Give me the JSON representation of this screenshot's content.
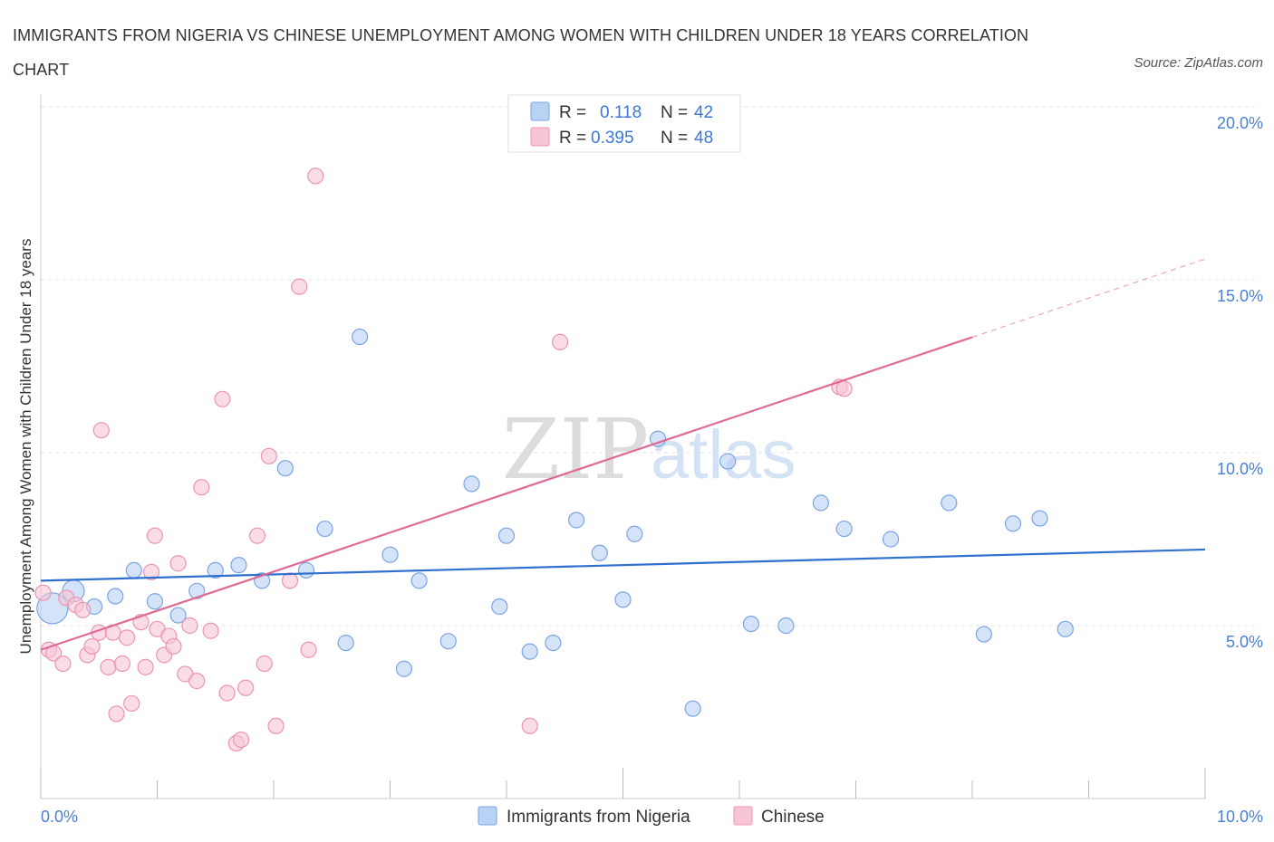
{
  "title": "IMMIGRANTS FROM NIGERIA VS CHINESE UNEMPLOYMENT AMONG WOMEN WITH CHILDREN UNDER 18 YEARS CORRELATION CHART",
  "source": "Source: ZipAtlas.com",
  "watermark": {
    "zip": "ZIP",
    "atlas": "atlas"
  },
  "colors": {
    "nigeria_fill": "#b9d1f3",
    "nigeria_stroke": "#7aa5e3",
    "nigeria_line": "#2f6fcf",
    "chinese_fill": "#f7c5d5",
    "chinese_stroke": "#ec94b2",
    "chinese_line": "#e06a94",
    "grid": "#e3e3e3",
    "axis_text": "#4a7fd1"
  },
  "legend": {
    "rows": [
      {
        "r_label": "R =",
        "r_value": "0.118",
        "n_label": "N =",
        "n_value": "42"
      },
      {
        "r_label": "R =",
        "r_value": "0.395",
        "n_label": "N =",
        "n_value": "48"
      }
    ]
  },
  "chart_data": {
    "type": "scatter",
    "xlabel": "",
    "ylabel": "Unemployment Among Women with Children Under 18 years",
    "xlim": [
      0,
      10
    ],
    "ylim": [
      0,
      20
    ],
    "x_tick_labels": [
      "0.0%",
      "10.0%"
    ],
    "y_ticks": [
      5,
      10,
      15,
      20
    ],
    "y_tick_labels": [
      "5.0%",
      "10.0%",
      "15.0%",
      "20.0%"
    ],
    "grid": true,
    "legend_position": "top-center",
    "series": [
      {
        "name": "Immigrants from Nigeria",
        "trend": {
          "x": [
            0,
            10
          ],
          "y": [
            6.3,
            7.2
          ],
          "solid_until": 10
        },
        "points": [
          [
            0.1,
            5.5,
            "big"
          ],
          [
            0.28,
            6.0,
            "mid"
          ],
          [
            0.46,
            5.55
          ],
          [
            0.64,
            5.85
          ],
          [
            0.8,
            6.6
          ],
          [
            0.98,
            5.7
          ],
          [
            1.18,
            5.3
          ],
          [
            1.34,
            6.0
          ],
          [
            1.5,
            6.6
          ],
          [
            1.7,
            6.75
          ],
          [
            1.9,
            6.3
          ],
          [
            2.1,
            9.55
          ],
          [
            2.28,
            6.6
          ],
          [
            2.44,
            7.8
          ],
          [
            2.62,
            4.5
          ],
          [
            2.74,
            13.35
          ],
          [
            3.0,
            7.05
          ],
          [
            3.12,
            3.75
          ],
          [
            3.25,
            6.3
          ],
          [
            3.5,
            4.55
          ],
          [
            3.7,
            9.1
          ],
          [
            3.94,
            5.55
          ],
          [
            4.0,
            7.6
          ],
          [
            4.2,
            4.25
          ],
          [
            4.4,
            4.5
          ],
          [
            4.6,
            8.05
          ],
          [
            4.8,
            7.1
          ],
          [
            5.0,
            5.75
          ],
          [
            5.1,
            7.65
          ],
          [
            5.3,
            10.4
          ],
          [
            5.6,
            2.6
          ],
          [
            5.9,
            9.75
          ],
          [
            6.1,
            5.05
          ],
          [
            6.4,
            5.0
          ],
          [
            6.7,
            8.55
          ],
          [
            6.9,
            7.8
          ],
          [
            7.3,
            7.5
          ],
          [
            7.8,
            8.55
          ],
          [
            8.1,
            4.75
          ],
          [
            8.35,
            7.95
          ],
          [
            8.58,
            8.1
          ],
          [
            8.8,
            4.9
          ]
        ]
      },
      {
        "name": "Chinese",
        "trend": {
          "x": [
            0,
            10
          ],
          "y": [
            4.3,
            15.6
          ],
          "solid_until": 8.0
        },
        "points": [
          [
            0.02,
            5.95
          ],
          [
            0.07,
            4.3
          ],
          [
            0.11,
            4.2
          ],
          [
            0.19,
            3.9
          ],
          [
            0.22,
            5.8
          ],
          [
            0.3,
            5.6
          ],
          [
            0.36,
            5.45
          ],
          [
            0.4,
            4.15
          ],
          [
            0.44,
            4.4
          ],
          [
            0.5,
            4.8
          ],
          [
            0.52,
            10.65
          ],
          [
            0.58,
            3.8
          ],
          [
            0.62,
            4.8
          ],
          [
            0.65,
            2.45
          ],
          [
            0.7,
            3.9
          ],
          [
            0.74,
            4.65
          ],
          [
            0.78,
            2.75
          ],
          [
            0.86,
            5.1
          ],
          [
            0.9,
            3.8
          ],
          [
            0.95,
            6.55
          ],
          [
            0.98,
            7.6
          ],
          [
            1.0,
            4.9
          ],
          [
            1.06,
            4.15
          ],
          [
            1.1,
            4.7
          ],
          [
            1.14,
            4.4
          ],
          [
            1.18,
            6.8
          ],
          [
            1.24,
            3.6
          ],
          [
            1.28,
            5.0
          ],
          [
            1.34,
            3.4
          ],
          [
            1.38,
            9.0
          ],
          [
            1.46,
            4.85
          ],
          [
            1.56,
            11.55
          ],
          [
            1.6,
            3.05
          ],
          [
            1.68,
            1.6
          ],
          [
            1.72,
            1.7
          ],
          [
            1.76,
            3.2
          ],
          [
            1.86,
            7.6
          ],
          [
            1.92,
            3.9
          ],
          [
            1.96,
            9.9
          ],
          [
            2.02,
            2.1
          ],
          [
            2.14,
            6.3
          ],
          [
            2.22,
            14.8
          ],
          [
            2.3,
            4.3
          ],
          [
            2.36,
            18.0
          ],
          [
            4.2,
            2.1
          ],
          [
            4.46,
            13.2
          ],
          [
            6.86,
            11.9
          ],
          [
            6.9,
            11.85
          ]
        ]
      }
    ]
  },
  "bottom_legend": [
    {
      "label": "Immigrants from Nigeria"
    },
    {
      "label": "Chinese"
    }
  ]
}
